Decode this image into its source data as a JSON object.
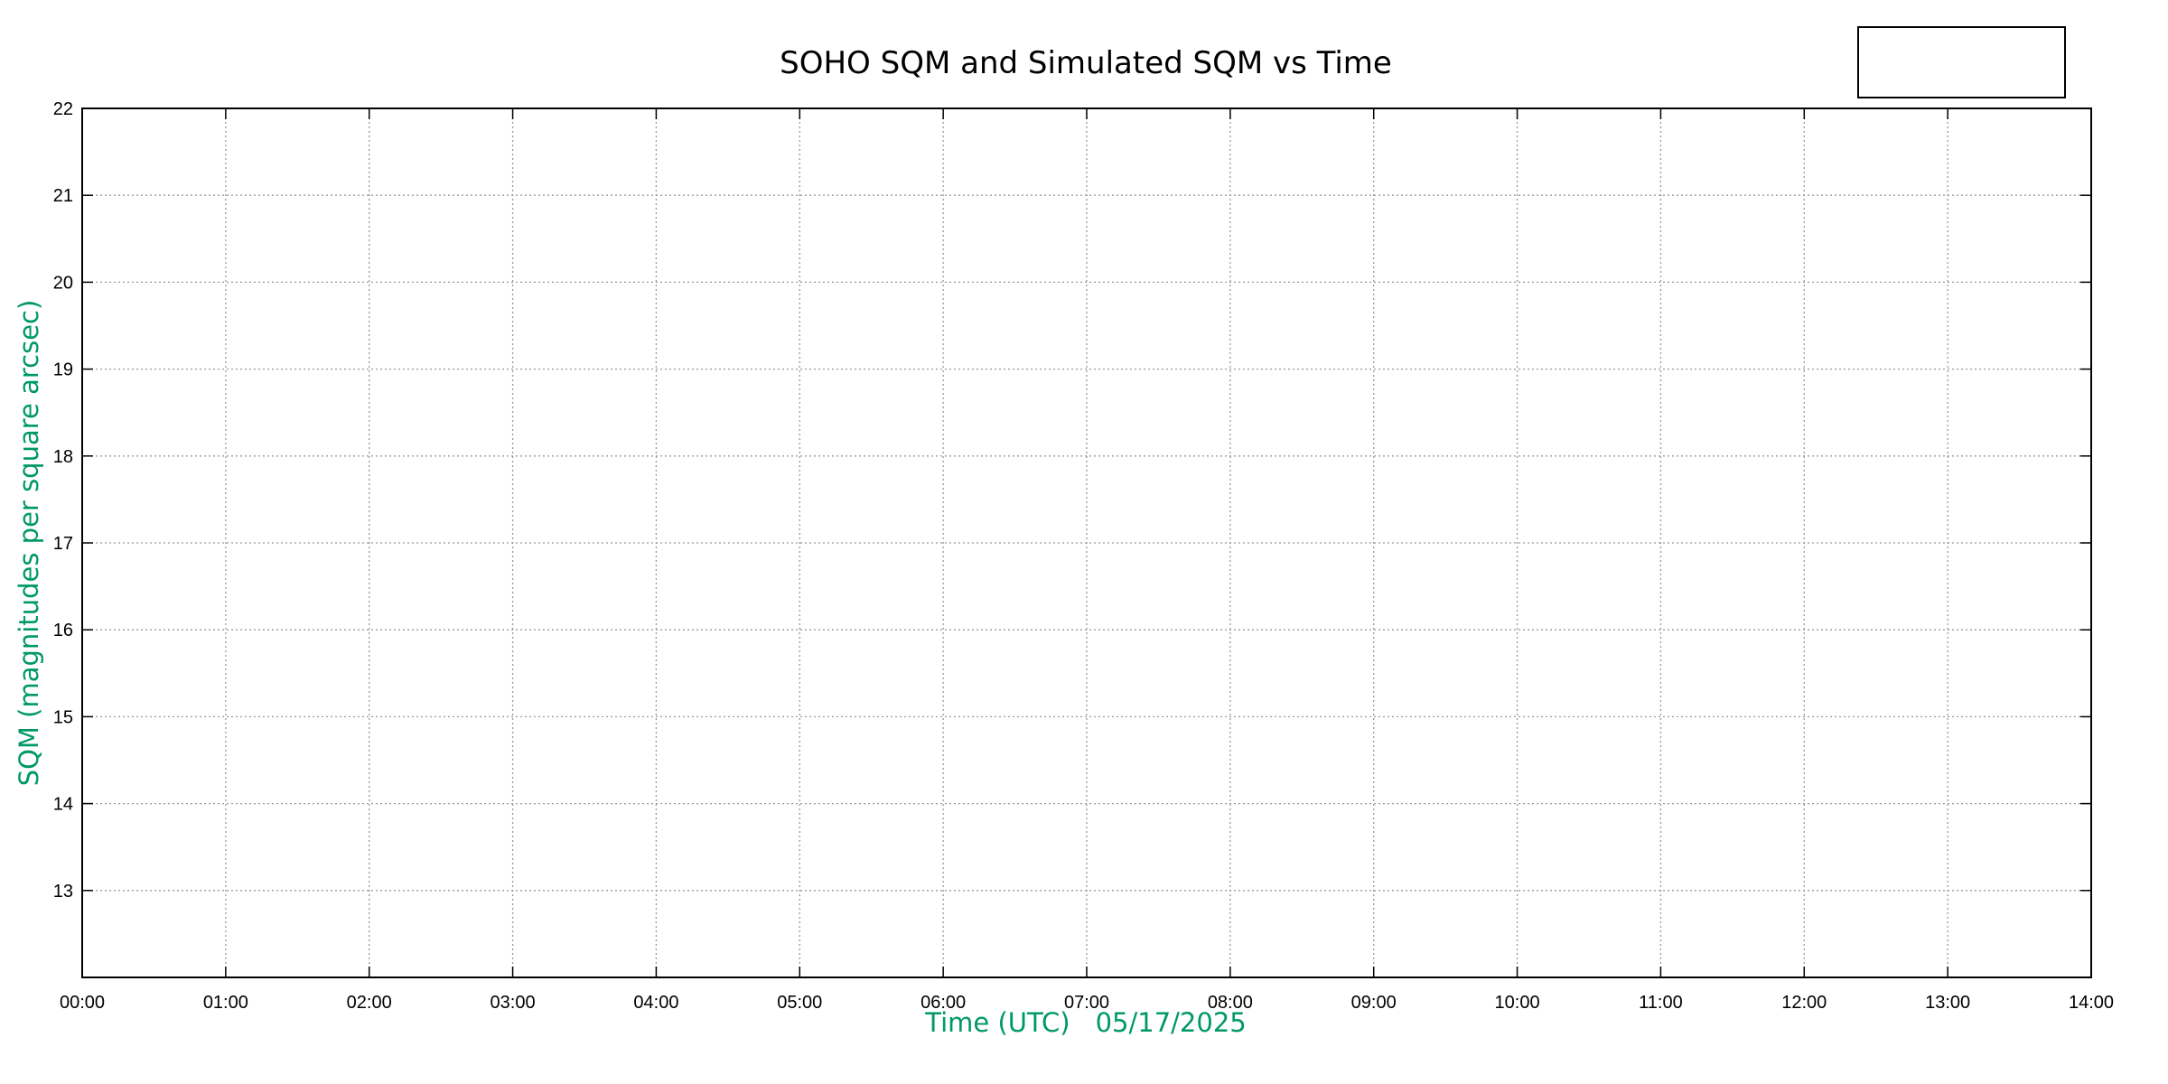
{
  "chart_data": {
    "type": "line",
    "title": "SOHO SQM and Simulated SQM vs Time",
    "xlabel": "Time (UTC)",
    "xlabel_date": "05/17/2025",
    "ylabel": "SQM (magnitudes per square arcsec)",
    "xlim": [
      "00:00",
      "14:00"
    ],
    "ylim": [
      12,
      22
    ],
    "x_ticks": [
      "00:00",
      "01:00",
      "02:00",
      "03:00",
      "04:00",
      "05:00",
      "06:00",
      "07:00",
      "08:00",
      "09:00",
      "10:00",
      "11:00",
      "12:00",
      "13:00",
      "14:00"
    ],
    "y_ticks": [
      13,
      14,
      15,
      16,
      17,
      18,
      19,
      20,
      21,
      22
    ],
    "grid": true,
    "legend": {
      "placement": "top-right",
      "entries": []
    },
    "series": [],
    "colors": {
      "axis_label": "#009966",
      "grid": "#999999"
    }
  }
}
